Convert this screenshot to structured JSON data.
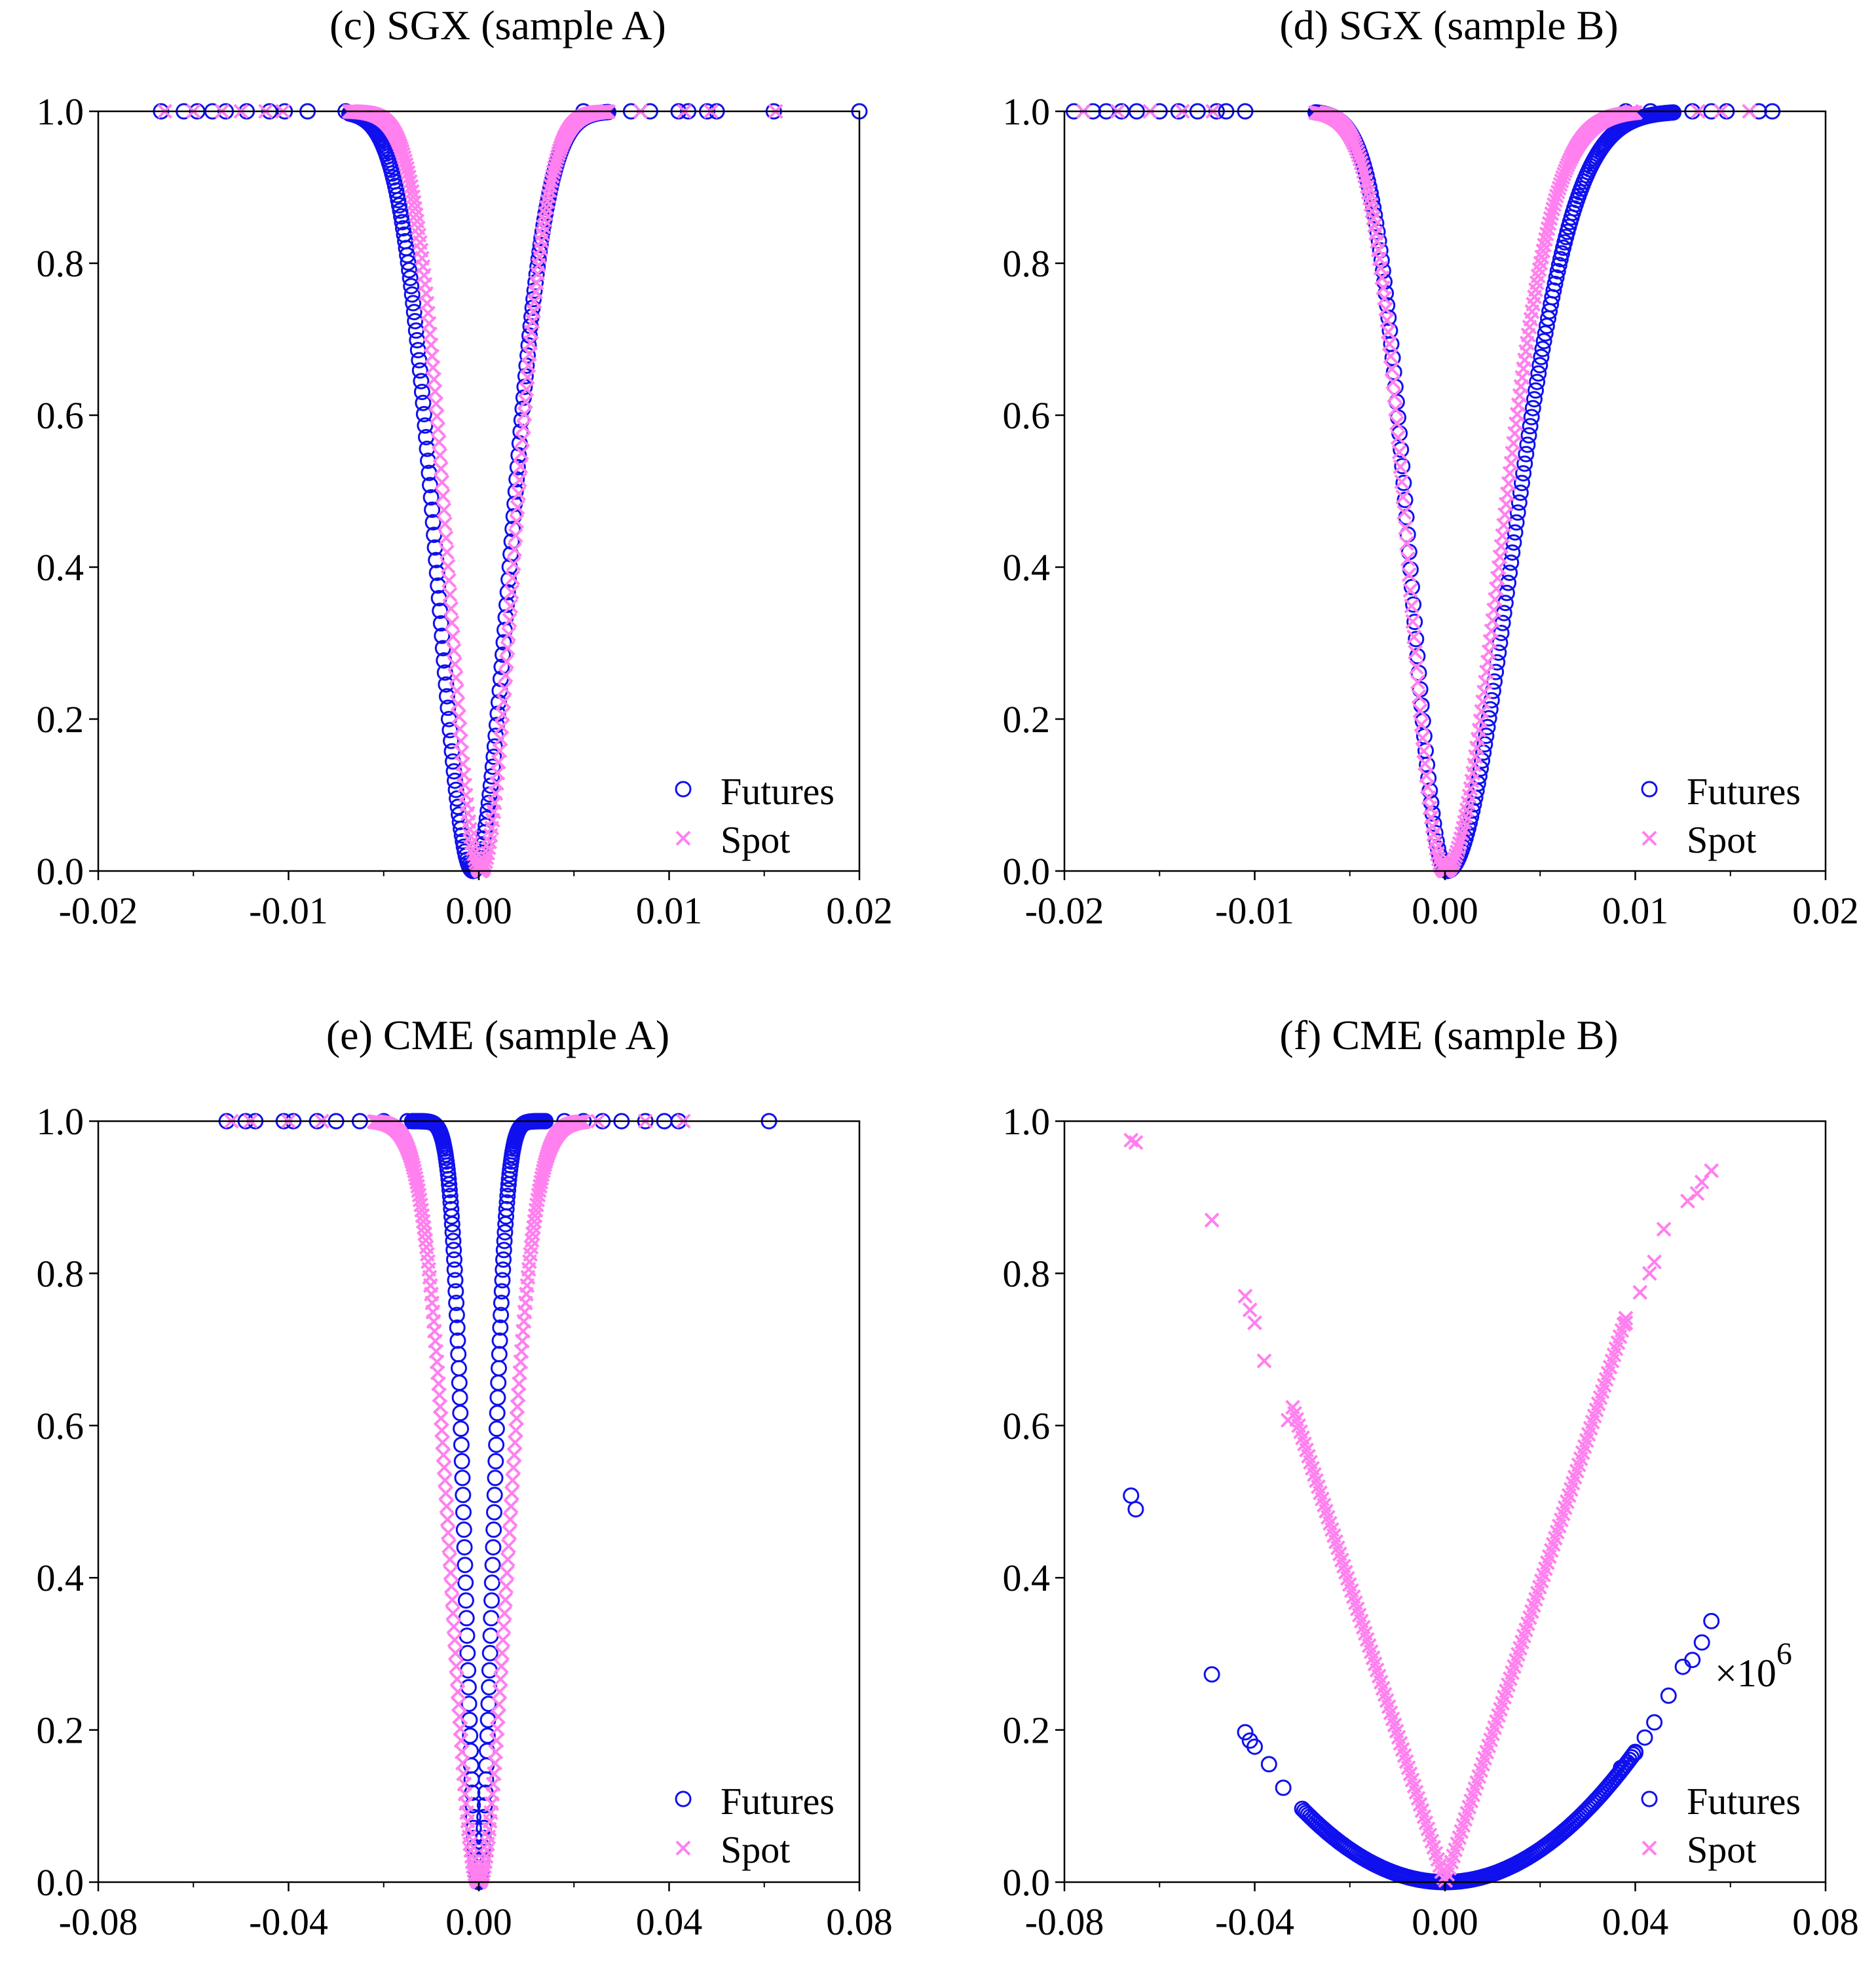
{
  "figure": {
    "legend_labels": [
      "Futures",
      "Spot"
    ]
  },
  "colors": {
    "futures": "#1010ee",
    "spot": "#ff80ee",
    "axis": "#000000",
    "background": "#ffffff"
  },
  "chart_data": [
    {
      "id": "c",
      "title": "(c) SGX (sample A)",
      "type": "scatter",
      "xlim": [
        -0.02,
        0.02
      ],
      "ylim": [
        0,
        1
      ],
      "xticks": [
        -0.02,
        -0.01,
        0.0,
        0.01,
        0.02
      ],
      "xtick_labels": [
        "-0.02",
        "-0.01",
        "0.00",
        "0.01",
        "0.02"
      ],
      "yticks": [
        0,
        0.2,
        0.4,
        0.6,
        0.8,
        1.0
      ],
      "ytick_labels": [
        "0.0",
        "0.2",
        "0.4",
        "0.6",
        "0.8",
        "1.0"
      ],
      "legend": "bottom-right",
      "multiplier": "",
      "series": [
        {
          "name": "Futures",
          "marker": "circle",
          "curve": {
            "kind": "bell",
            "center": -0.0003,
            "sigma": 0.0019,
            "x_range": [
              -0.0068,
              0.0068
            ]
          },
          "extra": {
            "x": [
              -0.0167,
              -0.0155,
              -0.0148,
              -0.014,
              -0.0133,
              -0.0122,
              -0.011,
              -0.0102,
              -0.009,
              -0.007,
              0.0055,
              0.008,
              0.009,
              0.0105,
              0.011,
              0.012,
              0.0125,
              0.0155,
              0.02
            ],
            "y": 1.0
          }
        },
        {
          "name": "Spot",
          "marker": "x",
          "curve": {
            "kind": "bell",
            "center": 0.0001,
            "sigma": 0.0017,
            "x_range": [
              -0.0068,
              0.0068
            ]
          },
          "extra": {
            "x": [
              -0.0165,
              -0.015,
              -0.0135,
              -0.0125,
              -0.0112,
              -0.0103,
              0.0085,
              0.0108,
              0.0122,
              0.0156
            ],
            "y": 1.0
          }
        }
      ]
    },
    {
      "id": "d",
      "title": "(d) SGX (sample B)",
      "type": "scatter",
      "xlim": [
        -0.02,
        0.02
      ],
      "ylim": [
        0,
        1
      ],
      "xticks": [
        -0.02,
        -0.01,
        0.0,
        0.01,
        0.02
      ],
      "xtick_labels": [
        "-0.02",
        "-0.01",
        "0.00",
        "0.01",
        "0.02"
      ],
      "yticks": [
        0,
        0.2,
        0.4,
        0.6,
        0.8,
        1.0
      ],
      "ytick_labels": [
        "0.0",
        "0.2",
        "0.4",
        "0.6",
        "0.8",
        "1.0"
      ],
      "legend": "bottom-right",
      "multiplier": "",
      "series": [
        {
          "name": "Futures",
          "marker": "circle",
          "curve": {
            "kind": "bell",
            "center": 0.0001,
            "sigma_left": 0.0019,
            "sigma_right": 0.0033,
            "x_range": [
              -0.0068,
              0.012
            ]
          },
          "extra": {
            "x": [
              -0.0195,
              -0.0185,
              -0.0178,
              -0.017,
              -0.0162,
              -0.015,
              -0.014,
              -0.013,
              -0.012,
              -0.0115,
              -0.0105,
              0.0095,
              0.0108,
              0.013,
              0.014,
              0.0148,
              0.0165,
              0.0172
            ],
            "y": 1.0
          }
        },
        {
          "name": "Spot",
          "marker": "x",
          "curve": {
            "kind": "bell",
            "center": 0.0,
            "sigma_left": 0.0019,
            "sigma_right": 0.0028,
            "x_range": [
              -0.0068,
              0.01
            ]
          },
          "extra": {
            "x": [
              -0.019,
              -0.0172,
              -0.0155,
              -0.0138,
              -0.0122,
              0.0098,
              0.0133,
              0.0145,
              0.016
            ],
            "y": 1.0
          }
        }
      ]
    },
    {
      "id": "e",
      "title": "(e) CME (sample A)",
      "type": "scatter",
      "xlim": [
        -0.08,
        0.08
      ],
      "ylim": [
        0,
        1
      ],
      "xticks": [
        -0.08,
        -0.04,
        0.0,
        0.04,
        0.08
      ],
      "xtick_labels": [
        "-0.08",
        "-0.04",
        "0.00",
        "0.04",
        "0.08"
      ],
      "yticks": [
        0,
        0.2,
        0.4,
        0.6,
        0.8,
        1.0
      ],
      "ytick_labels": [
        "0.0",
        "0.2",
        "0.4",
        "0.6",
        "0.8",
        "1.0"
      ],
      "legend": "bottom-right",
      "multiplier": "",
      "series": [
        {
          "name": "Futures",
          "marker": "circle",
          "curve": {
            "kind": "bell",
            "center": 0.0,
            "sigma": 0.0028,
            "x_range": [
              -0.014,
              0.014
            ]
          },
          "extra": {
            "x": [
              -0.053,
              -0.049,
              -0.047,
              -0.041,
              -0.039,
              -0.034,
              -0.03,
              -0.025,
              -0.02,
              -0.015,
              0.012,
              0.018,
              0.022,
              0.026,
              0.03,
              0.035,
              0.039,
              0.042,
              0.061
            ],
            "y": 1.0
          }
        },
        {
          "name": "Spot",
          "marker": "x",
          "curve": {
            "kind": "bell",
            "center": 0.0,
            "sigma": 0.0058,
            "x_range": [
              -0.022,
              0.022
            ]
          },
          "extra": {
            "x": [
              -0.052,
              -0.048,
              -0.04,
              -0.033,
              0.025,
              0.035,
              0.043
            ],
            "y": 1.0
          }
        }
      ]
    },
    {
      "id": "f",
      "title": "(f) CME (sample B)",
      "type": "scatter",
      "xlim": [
        -0.08,
        0.08
      ],
      "ylim": [
        0,
        1
      ],
      "xticks": [
        -0.08,
        -0.04,
        0.0,
        0.04,
        0.08
      ],
      "xtick_labels": [
        "-0.08",
        "-0.04",
        "0.00",
        "0.04",
        "0.08"
      ],
      "yticks": [
        0,
        0.2,
        0.4,
        0.6,
        0.8,
        1.0
      ],
      "ytick_labels": [
        "0.0",
        "0.2",
        "0.4",
        "0.6",
        "0.8",
        "1.0"
      ],
      "legend": "bottom-right",
      "multiplier": "×10^6",
      "multiplier_base": "×10",
      "multiplier_exp": "6",
      "series": [
        {
          "name": "Futures",
          "marker": "circle",
          "curve": {
            "kind": "parabola",
            "center": 0.0,
            "a": 107,
            "x_range": [
              -0.03,
              0.04
            ]
          },
          "extra": {
            "x": [
              -0.066,
              -0.065,
              -0.049,
              -0.042,
              -0.041,
              -0.04,
              -0.037,
              -0.034,
              0.037,
              0.04,
              0.042,
              0.044,
              0.047,
              0.05,
              0.052,
              0.054,
              0.056
            ],
            "y": [
              0.508,
              0.49,
              0.273,
              0.197,
              0.186,
              0.178,
              0.155,
              0.124,
              0.15,
              0.17,
              0.19,
              0.21,
              0.245,
              0.283,
              0.292,
              0.315,
              0.343
            ]
          }
        },
        {
          "name": "Spot",
          "marker": "x",
          "curve": {
            "kind": "vshape",
            "center": 0.0,
            "a": 19.5,
            "x_range": [
              -0.032,
              0.038
            ]
          },
          "extra": {
            "x": [
              -0.066,
              -0.065,
              -0.049,
              -0.042,
              -0.041,
              -0.04,
              -0.038,
              -0.033,
              0.038,
              0.041,
              0.043,
              0.044,
              0.046,
              0.051,
              0.053,
              0.054,
              0.056
            ],
            "y": [
              0.975,
              0.972,
              0.87,
              0.77,
              0.752,
              0.735,
              0.685,
              0.607,
              0.735,
              0.775,
              0.8,
              0.815,
              0.858,
              0.895,
              0.905,
              0.92,
              0.935
            ]
          }
        }
      ]
    }
  ]
}
